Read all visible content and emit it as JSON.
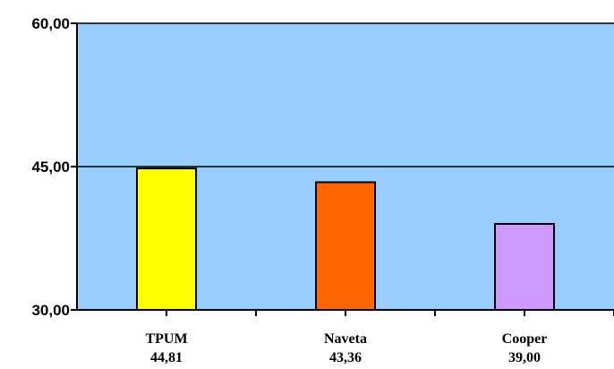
{
  "chart_data": {
    "type": "bar",
    "categories": [
      "TPUM",
      "Naveta",
      "Cooper"
    ],
    "values": [
      44.81,
      43.36,
      39.0
    ],
    "value_labels": [
      "44,81",
      "43,36",
      "39,00"
    ],
    "ylim": [
      30,
      60
    ],
    "yticks": [
      30,
      45,
      60
    ],
    "ytick_labels": [
      "30,00",
      "45,00",
      "60,00"
    ],
    "grid": true,
    "legend": "none",
    "colors": {
      "plot_background": "#99ccff",
      "bars": [
        "#ffff00",
        "#ff6600",
        "#cc99ff"
      ],
      "bar_stroke": "#000000"
    }
  }
}
